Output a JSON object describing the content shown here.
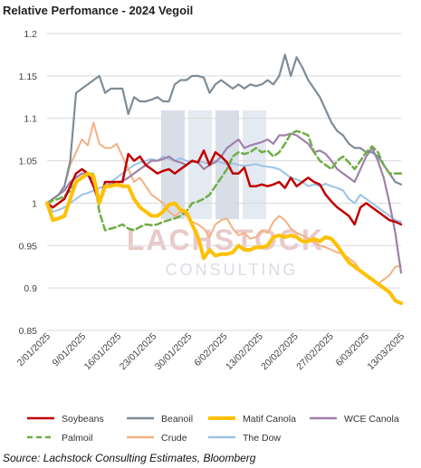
{
  "chart_data": {
    "type": "line",
    "title": "Relative Perfomance - 2024 Vegoil",
    "ylim": [
      0.85,
      1.2
    ],
    "yticks": [
      "0.85",
      "0.9",
      "0.95",
      "1",
      "1.05",
      "1.1",
      "1.15",
      "1.2"
    ],
    "xticks": [
      "2/01/2025",
      "9/01/2025",
      "16/01/2025",
      "23/01/2025",
      "30/01/2025",
      "6/02/2025",
      "13/02/2025",
      "20/02/2025",
      "27/02/2025",
      "6/03/2025",
      "13/03/2025"
    ],
    "grid": "horizontal",
    "legend_position": "bottom",
    "series": [
      {
        "name": "Soybeans",
        "color": "#c00000",
        "dash": "solid",
        "values": [
          1.0,
          0.995,
          1.0,
          1.005,
          1.02,
          1.035,
          1.04,
          1.035,
          1.02,
          1.0,
          1.025,
          1.025,
          1.025,
          1.025,
          1.058,
          1.05,
          1.055,
          1.045,
          1.04,
          1.035,
          1.038,
          1.04,
          1.035,
          1.04,
          1.045,
          1.05,
          1.048,
          1.062,
          1.045,
          1.06,
          1.055,
          1.048,
          1.035,
          1.035,
          1.042,
          1.02,
          1.02,
          1.022,
          1.02,
          1.022,
          1.025,
          1.018,
          1.03,
          1.02,
          1.025,
          1.03,
          1.025,
          1.022,
          1.01,
          1.002,
          0.995,
          0.99,
          0.985,
          0.975,
          0.995,
          1.0,
          0.995,
          0.99,
          0.985,
          0.98,
          0.978,
          0.975
        ]
      },
      {
        "name": "Beanoil",
        "color": "#7f8c97",
        "dash": "solid",
        "values": [
          1.0,
          1.005,
          1.01,
          1.02,
          1.05,
          1.13,
          1.135,
          1.14,
          1.145,
          1.15,
          1.13,
          1.135,
          1.135,
          1.135,
          1.105,
          1.125,
          1.12,
          1.12,
          1.122,
          1.125,
          1.12,
          1.12,
          1.14,
          1.145,
          1.145,
          1.15,
          1.15,
          1.148,
          1.13,
          1.14,
          1.145,
          1.14,
          1.135,
          1.14,
          1.135,
          1.14,
          1.138,
          1.14,
          1.145,
          1.14,
          1.15,
          1.175,
          1.15,
          1.172,
          1.16,
          1.145,
          1.135,
          1.125,
          1.11,
          1.095,
          1.085,
          1.08,
          1.07,
          1.065,
          1.065,
          1.06,
          1.06,
          1.055,
          1.045,
          1.035,
          1.025,
          1.022
        ]
      },
      {
        "name": "Matif Canola",
        "color": "#ffc000",
        "dash": "solid",
        "values": [
          1.0,
          0.98,
          0.982,
          0.985,
          1.005,
          1.025,
          1.03,
          1.035,
          1.032,
          1.0,
          1.02,
          1.02,
          1.022,
          1.02,
          1.02,
          1.005,
          0.995,
          0.99,
          0.985,
          0.985,
          0.99,
          0.998,
          1.0,
          0.992,
          0.99,
          0.975,
          0.96,
          0.935,
          0.945,
          0.938,
          0.94,
          0.94,
          0.942,
          0.95,
          0.945,
          0.945,
          0.948,
          0.948,
          0.95,
          0.96,
          0.962,
          0.96,
          0.962,
          0.96,
          0.955,
          0.955,
          0.958,
          0.955,
          0.96,
          0.958,
          0.95,
          0.94,
          0.93,
          0.925,
          0.92,
          0.915,
          0.91,
          0.905,
          0.9,
          0.895,
          0.885,
          0.882
        ]
      },
      {
        "name": "WCE Canola",
        "color": "#a080aa",
        "dash": "solid",
        "values": [
          1.0,
          1.005,
          1.01,
          1.015,
          1.025,
          1.03,
          1.035,
          1.035,
          1.028,
          1.0,
          1.02,
          1.022,
          1.024,
          1.026,
          1.03,
          1.035,
          1.04,
          1.045,
          1.05,
          1.05,
          1.052,
          1.055,
          1.05,
          1.048,
          1.045,
          1.05,
          1.048,
          1.04,
          1.045,
          1.048,
          1.055,
          1.065,
          1.07,
          1.075,
          1.065,
          1.068,
          1.07,
          1.072,
          1.075,
          1.07,
          1.08,
          1.08,
          1.082,
          1.08,
          1.075,
          1.07,
          1.06,
          1.062,
          1.058,
          1.05,
          1.04,
          1.035,
          1.03,
          1.025,
          1.04,
          1.055,
          1.065,
          1.05,
          1.03,
          1.0,
          0.965,
          0.918
        ]
      },
      {
        "name": "Palmoil",
        "color": "#70ad47",
        "dash": "dash",
        "values": [
          1.0,
          1.003,
          1.005,
          1.008,
          1.015,
          1.025,
          1.03,
          1.033,
          1.035,
          0.99,
          0.968,
          0.97,
          0.972,
          0.975,
          0.97,
          0.968,
          0.972,
          0.975,
          0.974,
          0.975,
          0.978,
          0.98,
          0.982,
          0.985,
          0.99,
          1.0,
          1.002,
          1.005,
          1.01,
          1.02,
          1.03,
          1.04,
          1.055,
          1.06,
          1.058,
          1.06,
          1.065,
          1.06,
          1.062,
          1.055,
          1.06,
          1.07,
          1.082,
          1.085,
          1.083,
          1.08,
          1.06,
          1.05,
          1.045,
          1.04,
          1.05,
          1.055,
          1.048,
          1.04,
          1.05,
          1.06,
          1.067,
          1.06,
          1.045,
          1.035,
          1.035,
          1.035
        ]
      },
      {
        "name": "Crude",
        "color": "#f4b183",
        "dash": "solid",
        "values": [
          1.0,
          1.005,
          1.01,
          1.02,
          1.045,
          1.06,
          1.075,
          1.068,
          1.095,
          1.07,
          1.065,
          1.065,
          1.07,
          1.055,
          1.04,
          1.025,
          1.03,
          1.02,
          1.01,
          1.005,
          1.0,
          0.99,
          0.985,
          0.99,
          0.985,
          0.978,
          0.975,
          0.97,
          0.96,
          0.975,
          0.98,
          0.982,
          0.97,
          0.962,
          0.965,
          0.958,
          0.96,
          0.968,
          0.965,
          0.978,
          0.985,
          0.98,
          0.97,
          0.965,
          0.962,
          0.958,
          0.955,
          0.95,
          0.948,
          0.945,
          0.942,
          0.94,
          0.935,
          0.93,
          0.92,
          0.915,
          0.91,
          0.905,
          0.91,
          0.915,
          0.925,
          0.926
        ]
      },
      {
        "name": "The Dow",
        "color": "#9dc3e6",
        "dash": "solid",
        "values": [
          1.0,
          0.99,
          0.992,
          0.995,
          1.0,
          1.005,
          1.01,
          1.012,
          1.015,
          1.018,
          1.02,
          1.025,
          1.03,
          1.035,
          1.04,
          1.045,
          1.048,
          1.05,
          1.052,
          1.05,
          1.055,
          1.052,
          1.05,
          1.053,
          1.05,
          1.048,
          1.05,
          1.048,
          1.046,
          1.05,
          1.048,
          1.046,
          1.047,
          1.045,
          1.044,
          1.045,
          1.046,
          1.044,
          1.043,
          1.042,
          1.04,
          1.035,
          1.03,
          1.028,
          1.025,
          1.02,
          1.022,
          1.02,
          1.023,
          1.02,
          1.018,
          1.015,
          1.005,
          1.0,
          1.01,
          1.005,
          1.0,
          0.995,
          0.99,
          0.985,
          0.98,
          0.978
        ]
      }
    ]
  },
  "watermark": {
    "top": "LACHSTOCK",
    "bottom": "CONSULTING"
  },
  "source": "Source: Lachstock Consulting Estimates, Bloomberg"
}
